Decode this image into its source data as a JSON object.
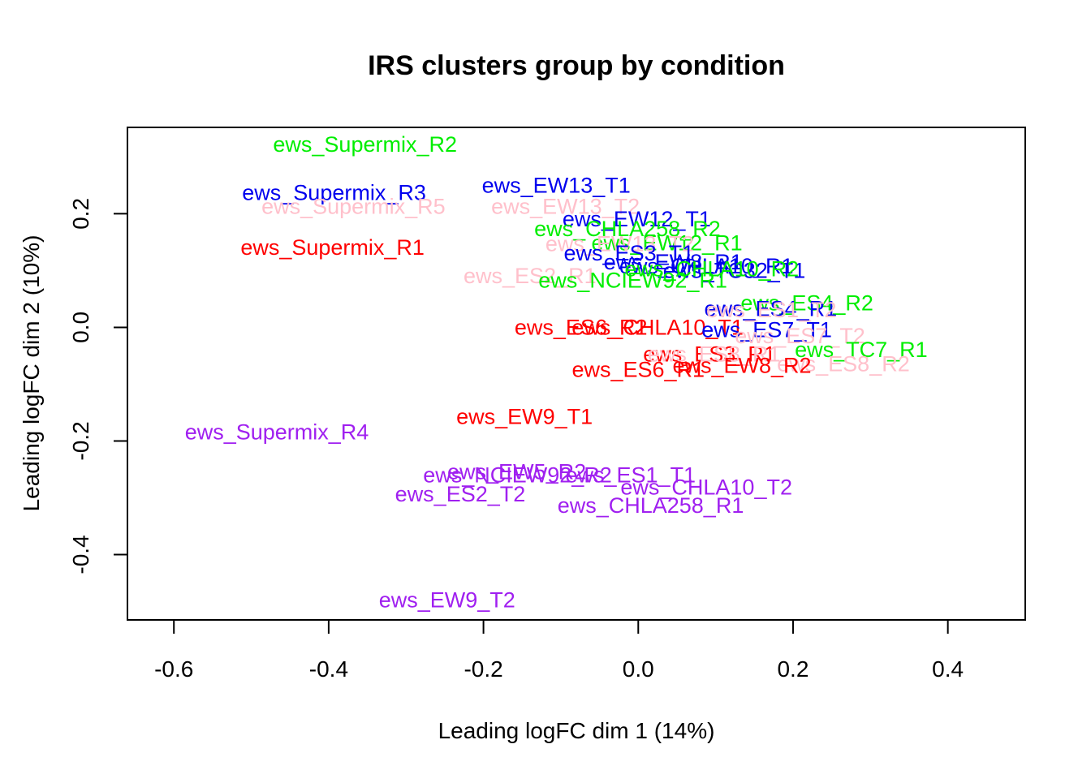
{
  "chart_data": {
    "type": "scatter",
    "title": "IRS clusters group by condition",
    "xlabel": "Leading logFC dim 1 (14%)",
    "ylabel": "Leading logFC dim 2 (10%)",
    "xlim": [
      -0.66,
      0.5
    ],
    "ylim": [
      -0.515,
      0.352
    ],
    "x_ticks": [
      -0.6,
      -0.4,
      -0.2,
      0.0,
      0.2,
      0.4
    ],
    "x_tick_labels": [
      "-0.6",
      "-0.4",
      "-0.2",
      "0.0",
      "0.2",
      "0.4"
    ],
    "y_ticks": [
      -0.4,
      -0.2,
      0.0,
      0.2
    ],
    "y_tick_labels": [
      "-0.4",
      "-0.2",
      "0.0",
      "0.2"
    ],
    "grid": false,
    "legend": "none",
    "marker": "text",
    "colors": {
      "red": "#ff0000",
      "green": "#00ee00",
      "blue": "#0000ee",
      "pink": "#ffc0cb",
      "purple": "#a020f0"
    },
    "points": [
      {
        "label": "ews_Supermix_R2",
        "x": -0.353,
        "y": 0.319,
        "color": "#00ee00"
      },
      {
        "label": "ews_Supermix_R3",
        "x": -0.393,
        "y": 0.234,
        "color": "#0000ee"
      },
      {
        "label": "ews_Supermix_R5",
        "x": -0.368,
        "y": 0.21,
        "color": "#ffc0cb"
      },
      {
        "label": "ews_Supermix_R1",
        "x": -0.395,
        "y": 0.138,
        "color": "#ff0000"
      },
      {
        "label": "ews_EW13_T1",
        "x": -0.106,
        "y": 0.247,
        "color": "#0000ee"
      },
      {
        "label": "ews_EW13_T2",
        "x": -0.094,
        "y": 0.21,
        "color": "#ffc0cb"
      },
      {
        "label": "ews_EW12_T1",
        "x": -0.002,
        "y": 0.188,
        "color": "#0000ee"
      },
      {
        "label": "ews_CHLA258_R2",
        "x": -0.014,
        "y": 0.171,
        "color": "#00ee00"
      },
      {
        "label": "ews_EW12_R1",
        "x": 0.037,
        "y": 0.146,
        "color": "#00ee00"
      },
      {
        "label": "ews_EW13_T2",
        "x": -0.024,
        "y": 0.144,
        "color": "#ffc0cb"
      },
      {
        "label": "ews_ES3_T1",
        "x": -0.012,
        "y": 0.128,
        "color": "#0000ee"
      },
      {
        "label": "ews_EW8_R1",
        "x": 0.045,
        "y": 0.112,
        "color": "#0000ee"
      },
      {
        "label": "ews_CHLA10_R1",
        "x": 0.088,
        "y": 0.105,
        "color": "#0000ee"
      },
      {
        "label": "ews_TC32_T1",
        "x": 0.124,
        "y": 0.097,
        "color": "#0000ee"
      },
      {
        "label": "ews_CHLA10_R2",
        "x": 0.095,
        "y": 0.1,
        "color": "#00ee00"
      },
      {
        "label": "ews_ES2_R1",
        "x": -0.14,
        "y": 0.088,
        "color": "#ffc0cb"
      },
      {
        "label": "ews_NCIEW92_R1",
        "x": -0.007,
        "y": 0.08,
        "color": "#00ee00"
      },
      {
        "label": "ews_ES4_R2",
        "x": 0.218,
        "y": 0.04,
        "color": "#00ee00"
      },
      {
        "label": "ews_ES4_R1",
        "x": 0.171,
        "y": 0.03,
        "color": "#0000ee"
      },
      {
        "label": "ews_ES1_T2",
        "x": 0.172,
        "y": 0.028,
        "color": "#ffc0cb"
      },
      {
        "label": "ews_ES6_R2",
        "x": -0.074,
        "y": -0.003,
        "color": "#ff0000"
      },
      {
        "label": "ews_CHLA10_T1",
        "x": 0.025,
        "y": -0.003,
        "color": "#ff0000"
      },
      {
        "label": "ews_ES7_T1",
        "x": 0.166,
        "y": -0.007,
        "color": "#0000ee"
      },
      {
        "label": "ews_ES7_T2",
        "x": 0.209,
        "y": -0.018,
        "color": "#ffc0cb"
      },
      {
        "label": "ews_ES3_R1",
        "x": 0.092,
        "y": -0.05,
        "color": "#ff0000"
      },
      {
        "label": "ews_ES8_R1",
        "x": 0.098,
        "y": -0.05,
        "color": "#ffc0cb"
      },
      {
        "label": "ews_TC7_R1",
        "x": 0.288,
        "y": -0.042,
        "color": "#00ee00"
      },
      {
        "label": "ews_ES8_R2",
        "x": 0.265,
        "y": -0.067,
        "color": "#ffc0cb"
      },
      {
        "label": "ews_ES6_R1",
        "x": 0.0,
        "y": -0.077,
        "color": "#ff0000"
      },
      {
        "label": "ews_EW8_R2",
        "x": 0.134,
        "y": -0.07,
        "color": "#ff0000"
      },
      {
        "label": "ews_EW9_T1",
        "x": -0.147,
        "y": -0.16,
        "color": "#ff0000"
      },
      {
        "label": "ews_Supermix_R4",
        "x": -0.467,
        "y": -0.187,
        "color": "#a020f0"
      },
      {
        "label": "ews_EW5_R2",
        "x": -0.157,
        "y": -0.257,
        "color": "#a020f0"
      },
      {
        "label": "ews_NCIEW92_R2",
        "x": -0.156,
        "y": -0.263,
        "color": "#a020f0"
      },
      {
        "label": "ews_ES1_T1",
        "x": -0.01,
        "y": -0.263,
        "color": "#a020f0"
      },
      {
        "label": "ews_ES2_T2",
        "x": -0.23,
        "y": -0.296,
        "color": "#a020f0"
      },
      {
        "label": "ews_CHLA10_T2",
        "x": 0.088,
        "y": -0.284,
        "color": "#a020f0"
      },
      {
        "label": "ews_CHLA258_R1",
        "x": 0.016,
        "y": -0.316,
        "color": "#a020f0"
      },
      {
        "label": "ews_EW9_T2",
        "x": -0.247,
        "y": -0.483,
        "color": "#a020f0"
      }
    ]
  }
}
